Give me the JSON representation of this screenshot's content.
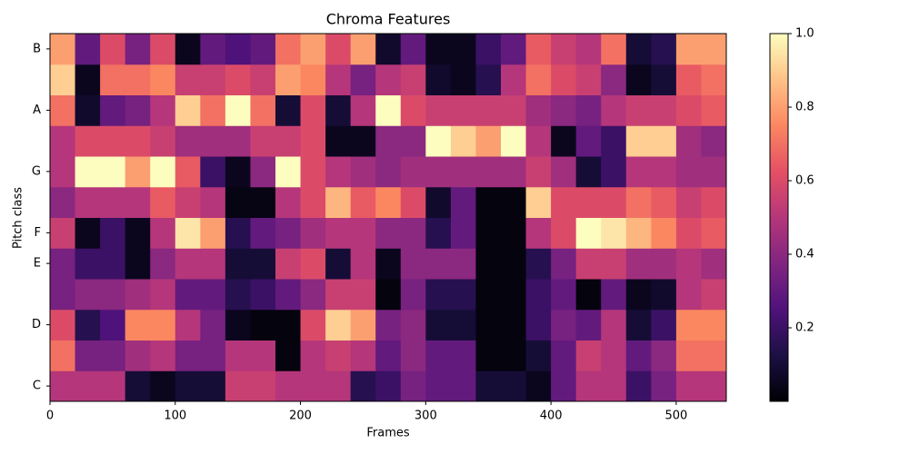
{
  "chart_data": {
    "type": "heatmap",
    "title": "Chroma Features",
    "x_label": "Frames",
    "y_label": "Pitch class",
    "colormap": "magma",
    "xbins": [
      0,
      20,
      40,
      60,
      80,
      100,
      120,
      140,
      160,
      180,
      200,
      220,
      240,
      260,
      280,
      300,
      320,
      340,
      360,
      380,
      400,
      420,
      440,
      460,
      480,
      500,
      520,
      540
    ],
    "rows": [
      "C",
      null,
      "D",
      null,
      "E",
      "F",
      null,
      "G",
      null,
      "A",
      null,
      "B"
    ],
    "z": [
      [
        0.5,
        0.5,
        0.5,
        0.1,
        0.05,
        0.1,
        0.1,
        0.55,
        0.55,
        0.5,
        0.5,
        0.5,
        0.15,
        0.2,
        0.35,
        0.3,
        0.3,
        0.1,
        0.1,
        0.05,
        0.3,
        0.5,
        0.5,
        0.2,
        0.35,
        0.5,
        0.5
      ],
      [
        0.7,
        0.35,
        0.35,
        0.45,
        0.5,
        0.35,
        0.35,
        0.5,
        0.5,
        0.02,
        0.5,
        0.55,
        0.5,
        0.3,
        0.4,
        0.3,
        0.3,
        0.02,
        0.02,
        0.1,
        0.3,
        0.55,
        0.5,
        0.3,
        0.4,
        0.7,
        0.7
      ],
      [
        0.6,
        0.15,
        0.25,
        0.75,
        0.75,
        0.5,
        0.35,
        0.05,
        0.02,
        0.02,
        0.6,
        0.9,
        0.8,
        0.35,
        0.4,
        0.1,
        0.1,
        0.02,
        0.02,
        0.2,
        0.35,
        0.3,
        0.5,
        0.1,
        0.2,
        0.75,
        0.75
      ],
      [
        0.35,
        0.4,
        0.4,
        0.45,
        0.5,
        0.3,
        0.3,
        0.15,
        0.2,
        0.3,
        0.4,
        0.55,
        0.55,
        0.02,
        0.35,
        0.15,
        0.15,
        0.02,
        0.02,
        0.2,
        0.3,
        0.02,
        0.3,
        0.05,
        0.08,
        0.5,
        0.55
      ],
      [
        0.35,
        0.2,
        0.2,
        0.05,
        0.4,
        0.5,
        0.5,
        0.1,
        0.1,
        0.55,
        0.6,
        0.1,
        0.5,
        0.05,
        0.4,
        0.4,
        0.4,
        0.02,
        0.02,
        0.15,
        0.35,
        0.55,
        0.55,
        0.45,
        0.45,
        0.5,
        0.45
      ],
      [
        0.55,
        0.05,
        0.2,
        0.05,
        0.5,
        0.95,
        0.8,
        0.15,
        0.3,
        0.35,
        0.45,
        0.5,
        0.5,
        0.4,
        0.4,
        0.15,
        0.3,
        0.02,
        0.02,
        0.5,
        0.6,
        1.0,
        0.95,
        0.85,
        0.75,
        0.6,
        0.65
      ],
      [
        0.4,
        0.5,
        0.5,
        0.5,
        0.65,
        0.55,
        0.5,
        0.03,
        0.03,
        0.5,
        0.6,
        0.85,
        0.65,
        0.75,
        0.6,
        0.08,
        0.3,
        0.02,
        0.02,
        0.9,
        0.6,
        0.6,
        0.6,
        0.7,
        0.65,
        0.55,
        0.6
      ],
      [
        0.5,
        1.0,
        1.0,
        0.8,
        1.0,
        0.65,
        0.2,
        0.05,
        0.4,
        1.0,
        0.6,
        0.5,
        0.45,
        0.4,
        0.45,
        0.45,
        0.45,
        0.45,
        0.45,
        0.55,
        0.45,
        0.1,
        0.2,
        0.5,
        0.5,
        0.45,
        0.45
      ],
      [
        0.5,
        0.6,
        0.6,
        0.6,
        0.55,
        0.45,
        0.45,
        0.45,
        0.55,
        0.55,
        0.6,
        0.05,
        0.05,
        0.4,
        0.4,
        1.0,
        0.9,
        0.8,
        1.0,
        0.5,
        0.05,
        0.3,
        0.2,
        0.9,
        0.9,
        0.45,
        0.4
      ],
      [
        0.7,
        0.08,
        0.3,
        0.35,
        0.5,
        0.9,
        0.7,
        1.0,
        0.7,
        0.1,
        0.6,
        0.1,
        0.5,
        1.0,
        0.6,
        0.55,
        0.55,
        0.55,
        0.55,
        0.45,
        0.4,
        0.35,
        0.5,
        0.55,
        0.55,
        0.6,
        0.65
      ],
      [
        0.9,
        0.05,
        0.7,
        0.7,
        0.75,
        0.55,
        0.55,
        0.6,
        0.55,
        0.8,
        0.75,
        0.5,
        0.35,
        0.5,
        0.55,
        0.08,
        0.05,
        0.15,
        0.5,
        0.7,
        0.6,
        0.55,
        0.4,
        0.05,
        0.1,
        0.65,
        0.7
      ],
      [
        0.8,
        0.3,
        0.6,
        0.35,
        0.6,
        0.05,
        0.3,
        0.25,
        0.3,
        0.7,
        0.8,
        0.6,
        0.8,
        0.08,
        0.3,
        0.05,
        0.05,
        0.2,
        0.3,
        0.65,
        0.55,
        0.5,
        0.7,
        0.1,
        0.15,
        0.8,
        0.8
      ]
    ],
    "xlim": [
      0,
      540
    ],
    "xticks": [
      0,
      100,
      200,
      300,
      400,
      500
    ],
    "clim": [
      0,
      1
    ],
    "cticks": [
      0.2,
      0.4,
      0.6,
      0.8,
      {
        "value": 1,
        "label": "1.0"
      }
    ]
  }
}
